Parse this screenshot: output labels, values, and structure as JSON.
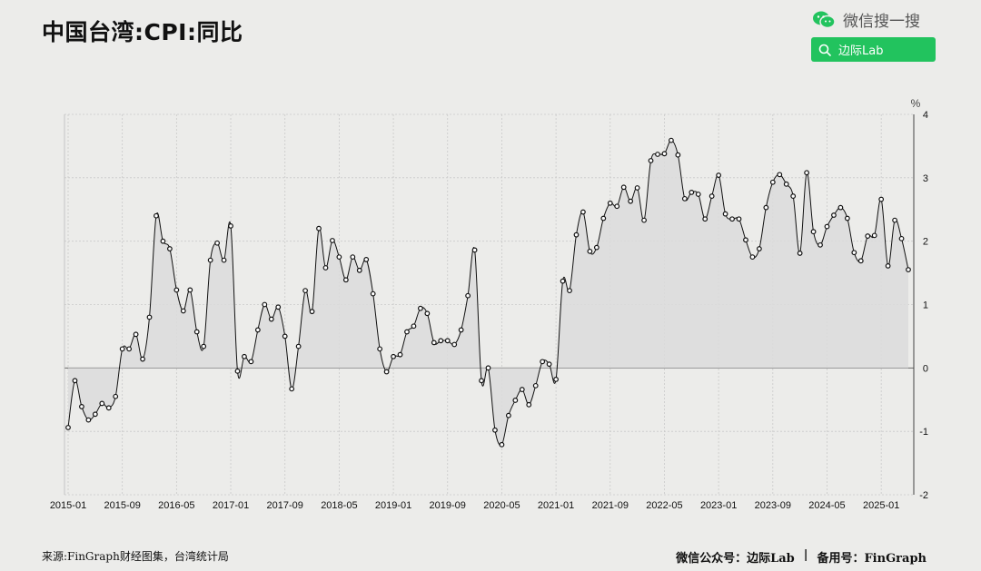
{
  "title": "中国台湾:CPI:同比",
  "wechat": {
    "label": "微信搜一搜",
    "search_text": "边际Lab"
  },
  "footer": {
    "source": "来源:FinGraph财经图集，台湾统计局",
    "account": "微信公众号：边际Lab",
    "separator": "|",
    "backup": "备用号：FinGraph"
  },
  "colors": {
    "accent_green": "#22c35e",
    "line": "#111111",
    "area": "#dcdcdc"
  },
  "chart_data": {
    "type": "area",
    "unit": "%",
    "ylim": [
      -2,
      4
    ],
    "yticks": [
      -2,
      -1,
      0,
      1,
      2,
      3,
      4
    ],
    "xtick_labels": [
      "2015-01",
      "2015-09",
      "2016-05",
      "2017-01",
      "2017-09",
      "2018-05",
      "2019-01",
      "2019-09",
      "2020-05",
      "2021-01",
      "2021-09",
      "2022-05",
      "2023-01",
      "2023-09",
      "2024-05",
      "2025-01"
    ],
    "grid": true,
    "x_start": "2015-01",
    "x_end": "2025-06",
    "series": [
      {
        "values": [
          -0.94,
          -0.2,
          -0.61,
          -0.82,
          -0.73,
          -0.56,
          -0.63,
          -0.45,
          0.3,
          0.3,
          0.53,
          0.14,
          0.8,
          2.4,
          2.0,
          1.88,
          1.23,
          0.9,
          1.23,
          0.57,
          0.34,
          1.7,
          1.97,
          1.7,
          2.24,
          -0.05,
          0.18,
          0.1,
          0.6,
          1.0,
          0.77,
          0.96,
          0.5,
          -0.33,
          0.34,
          1.22,
          0.89,
          2.2,
          1.58,
          2.01,
          1.75,
          1.39,
          1.75,
          1.54,
          1.71,
          1.17,
          0.3,
          -0.06,
          0.18,
          0.21,
          0.57,
          0.66,
          0.94,
          0.86,
          0.4,
          0.43,
          0.43,
          0.37,
          0.6,
          1.14,
          1.86,
          -0.2,
          0.0,
          -0.98,
          -1.21,
          -0.75,
          -0.51,
          -0.34,
          -0.58,
          -0.28,
          0.1,
          0.06,
          -0.18,
          1.37,
          1.22,
          2.1,
          2.46,
          1.84,
          1.9,
          2.36,
          2.6,
          2.55,
          2.85,
          2.63,
          2.84,
          2.33,
          3.27,
          3.37,
          3.38,
          3.59,
          3.36,
          2.67,
          2.77,
          2.74,
          2.35,
          2.71,
          3.04,
          2.43,
          2.35,
          2.35,
          2.02,
          1.75,
          1.88,
          2.53,
          2.93,
          3.05,
          2.9,
          2.71,
          1.81,
          3.08,
          2.15,
          1.94,
          2.23,
          2.41,
          2.53,
          2.36,
          1.82,
          1.69,
          2.08,
          2.09,
          2.66,
          1.61,
          2.33,
          2.04,
          1.55
        ]
      }
    ]
  }
}
